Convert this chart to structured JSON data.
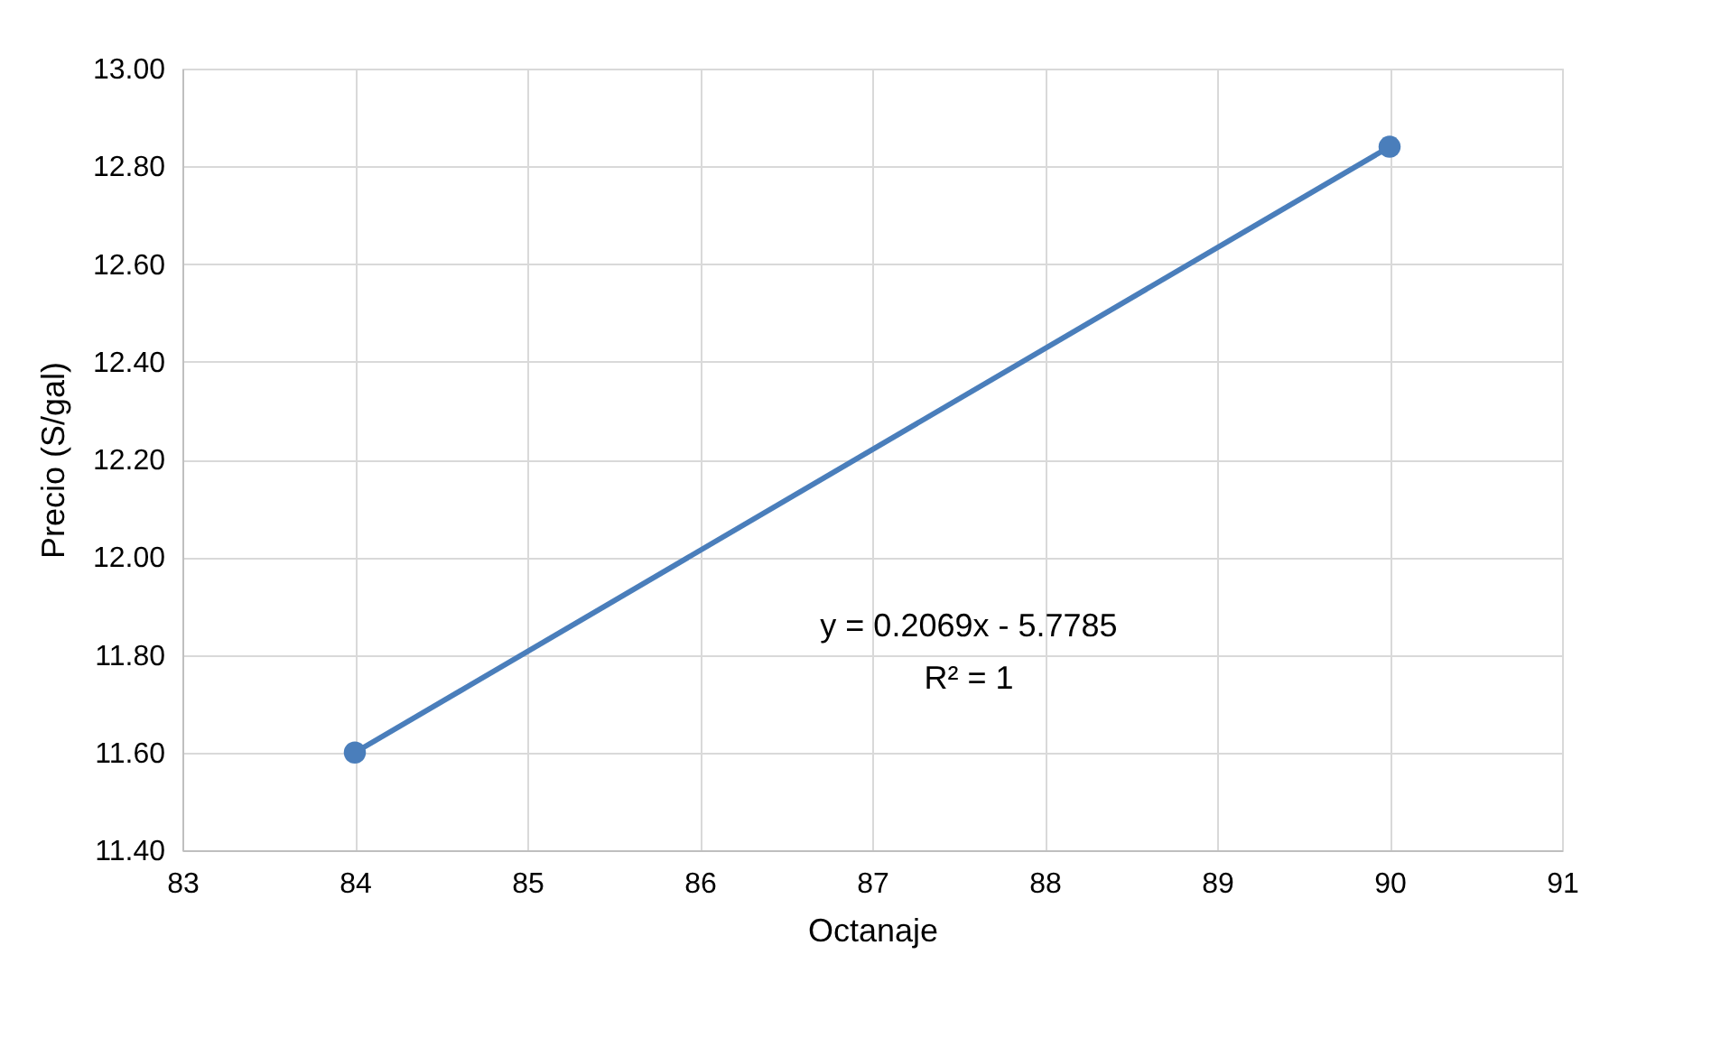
{
  "chart_data": {
    "type": "line",
    "xlabel": "Octanaje",
    "ylabel": "Precio (S/gal)",
    "series": [
      {
        "x": [
          84,
          90
        ],
        "values": [
          11.6,
          12.84
        ],
        "color": "#4a7ebb",
        "marker": "circle",
        "line_style": "solid"
      }
    ],
    "xlim": [
      83,
      91
    ],
    "xticks": [
      83,
      84,
      85,
      86,
      87,
      88,
      89,
      90,
      91
    ],
    "ylim": [
      11.4,
      13.0
    ],
    "yticks": [
      {
        "value": 11.4,
        "label": "11.40"
      },
      {
        "value": 11.6,
        "label": "11.60"
      },
      {
        "value": 11.8,
        "label": "11.80"
      },
      {
        "value": 12.0,
        "label": "12.00"
      },
      {
        "value": 12.2,
        "label": "12.20"
      },
      {
        "value": 12.4,
        "label": "12.40"
      },
      {
        "value": 12.6,
        "label": "12.60"
      },
      {
        "value": 12.8,
        "label": "12.80"
      },
      {
        "value": 13.0,
        "label": "13.00"
      }
    ],
    "annotations": [
      "y = 0.2069x - 5.7785",
      "R² = 1"
    ],
    "grid": true
  }
}
